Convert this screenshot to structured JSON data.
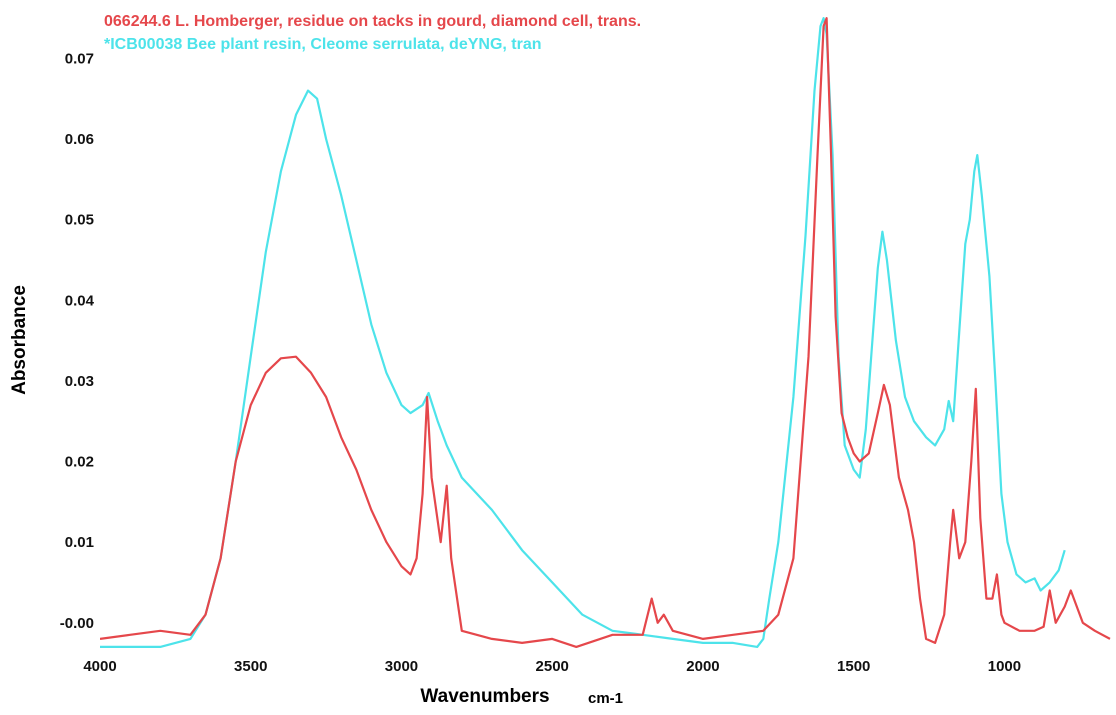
{
  "chart_data": {
    "type": "line",
    "x_label": "Wavenumbers",
    "x_unit": "cm-1",
    "y_label": "Absorbance",
    "xlim": [
      4000,
      630
    ],
    "ylim": [
      -0.002,
      0.078
    ],
    "xticks": [
      4000,
      3500,
      3000,
      2500,
      2000,
      1500,
      1000
    ],
    "yticks": [
      {
        "value": 0,
        "label": "-0.00"
      },
      0.01,
      0.02,
      0.03,
      0.04,
      0.05,
      0.06,
      0.07
    ],
    "grid": false,
    "series": [
      {
        "name": "066244.6 L. Homberger, residue on tacks in gourd, diamond cell, trans.",
        "color": "#e5474b",
        "x": [
          4000,
          3900,
          3800,
          3700,
          3650,
          3600,
          3550,
          3500,
          3450,
          3400,
          3350,
          3300,
          3250,
          3200,
          3150,
          3100,
          3050,
          3000,
          2970,
          2950,
          2930,
          2915,
          2900,
          2870,
          2850,
          2835,
          2800,
          2700,
          2600,
          2500,
          2420,
          2300,
          2200,
          2170,
          2150,
          2130,
          2100,
          2000,
          1900,
          1800,
          1750,
          1700,
          1650,
          1620,
          1600,
          1590,
          1575,
          1560,
          1540,
          1520,
          1500,
          1480,
          1450,
          1420,
          1400,
          1380,
          1350,
          1320,
          1300,
          1280,
          1260,
          1230,
          1200,
          1180,
          1170,
          1150,
          1130,
          1110,
          1095,
          1080,
          1060,
          1040,
          1025,
          1010,
          1000,
          950,
          900,
          870,
          850,
          830,
          800,
          780,
          760,
          740,
          700,
          650
        ],
        "values": [
          0.0,
          0.0005,
          0.001,
          0.0005,
          0.003,
          0.01,
          0.022,
          0.029,
          0.033,
          0.0348,
          0.035,
          0.033,
          0.03,
          0.025,
          0.021,
          0.016,
          0.012,
          0.009,
          0.008,
          0.01,
          0.018,
          0.03,
          0.02,
          0.012,
          0.019,
          0.01,
          0.001,
          0.0,
          -0.0005,
          0.0,
          -0.001,
          0.0005,
          0.0005,
          0.005,
          0.002,
          0.003,
          0.001,
          0.0,
          0.0005,
          0.001,
          0.003,
          0.01,
          0.035,
          0.06,
          0.076,
          0.077,
          0.06,
          0.04,
          0.028,
          0.025,
          0.023,
          0.022,
          0.023,
          0.028,
          0.0315,
          0.029,
          0.02,
          0.016,
          0.012,
          0.005,
          0.0,
          -0.0005,
          0.003,
          0.012,
          0.016,
          0.01,
          0.012,
          0.022,
          0.031,
          0.015,
          0.005,
          0.005,
          0.008,
          0.003,
          0.002,
          0.001,
          0.001,
          0.0015,
          0.006,
          0.002,
          0.004,
          0.006,
          0.004,
          0.002,
          0.001,
          0.0
        ]
      },
      {
        "name": "*ICB00038 Bee plant resin, Cleome serrulata, deYNG, tran",
        "color": "#4de3ea",
        "x": [
          4000,
          3800,
          3700,
          3650,
          3600,
          3550,
          3500,
          3450,
          3400,
          3350,
          3310,
          3280,
          3250,
          3200,
          3150,
          3100,
          3050,
          3000,
          2970,
          2930,
          2910,
          2880,
          2850,
          2800,
          2700,
          2600,
          2500,
          2400,
          2300,
          2200,
          2100,
          2000,
          1900,
          1820,
          1800,
          1780,
          1750,
          1700,
          1660,
          1630,
          1610,
          1600,
          1590,
          1570,
          1550,
          1530,
          1500,
          1480,
          1460,
          1440,
          1420,
          1405,
          1390,
          1360,
          1330,
          1300,
          1260,
          1230,
          1200,
          1185,
          1170,
          1150,
          1130,
          1115,
          1100,
          1090,
          1075,
          1050,
          1030,
          1010,
          990,
          960,
          930,
          900,
          880,
          850,
          820,
          800
        ],
        "values": [
          -0.001,
          -0.001,
          0.0,
          0.003,
          0.01,
          0.022,
          0.035,
          0.048,
          0.058,
          0.065,
          0.068,
          0.067,
          0.062,
          0.055,
          0.047,
          0.039,
          0.033,
          0.029,
          0.028,
          0.029,
          0.0305,
          0.027,
          0.024,
          0.02,
          0.016,
          0.011,
          0.007,
          0.003,
          0.001,
          0.0005,
          0.0,
          -0.0005,
          -0.0005,
          -0.001,
          0.0,
          0.005,
          0.012,
          0.03,
          0.05,
          0.068,
          0.076,
          0.077,
          0.075,
          0.06,
          0.035,
          0.024,
          0.021,
          0.02,
          0.026,
          0.036,
          0.046,
          0.0505,
          0.047,
          0.037,
          0.03,
          0.027,
          0.025,
          0.024,
          0.026,
          0.0295,
          0.027,
          0.038,
          0.049,
          0.052,
          0.058,
          0.06,
          0.055,
          0.045,
          0.032,
          0.018,
          0.012,
          0.008,
          0.007,
          0.0075,
          0.006,
          0.007,
          0.0085,
          0.011
        ]
      }
    ]
  }
}
